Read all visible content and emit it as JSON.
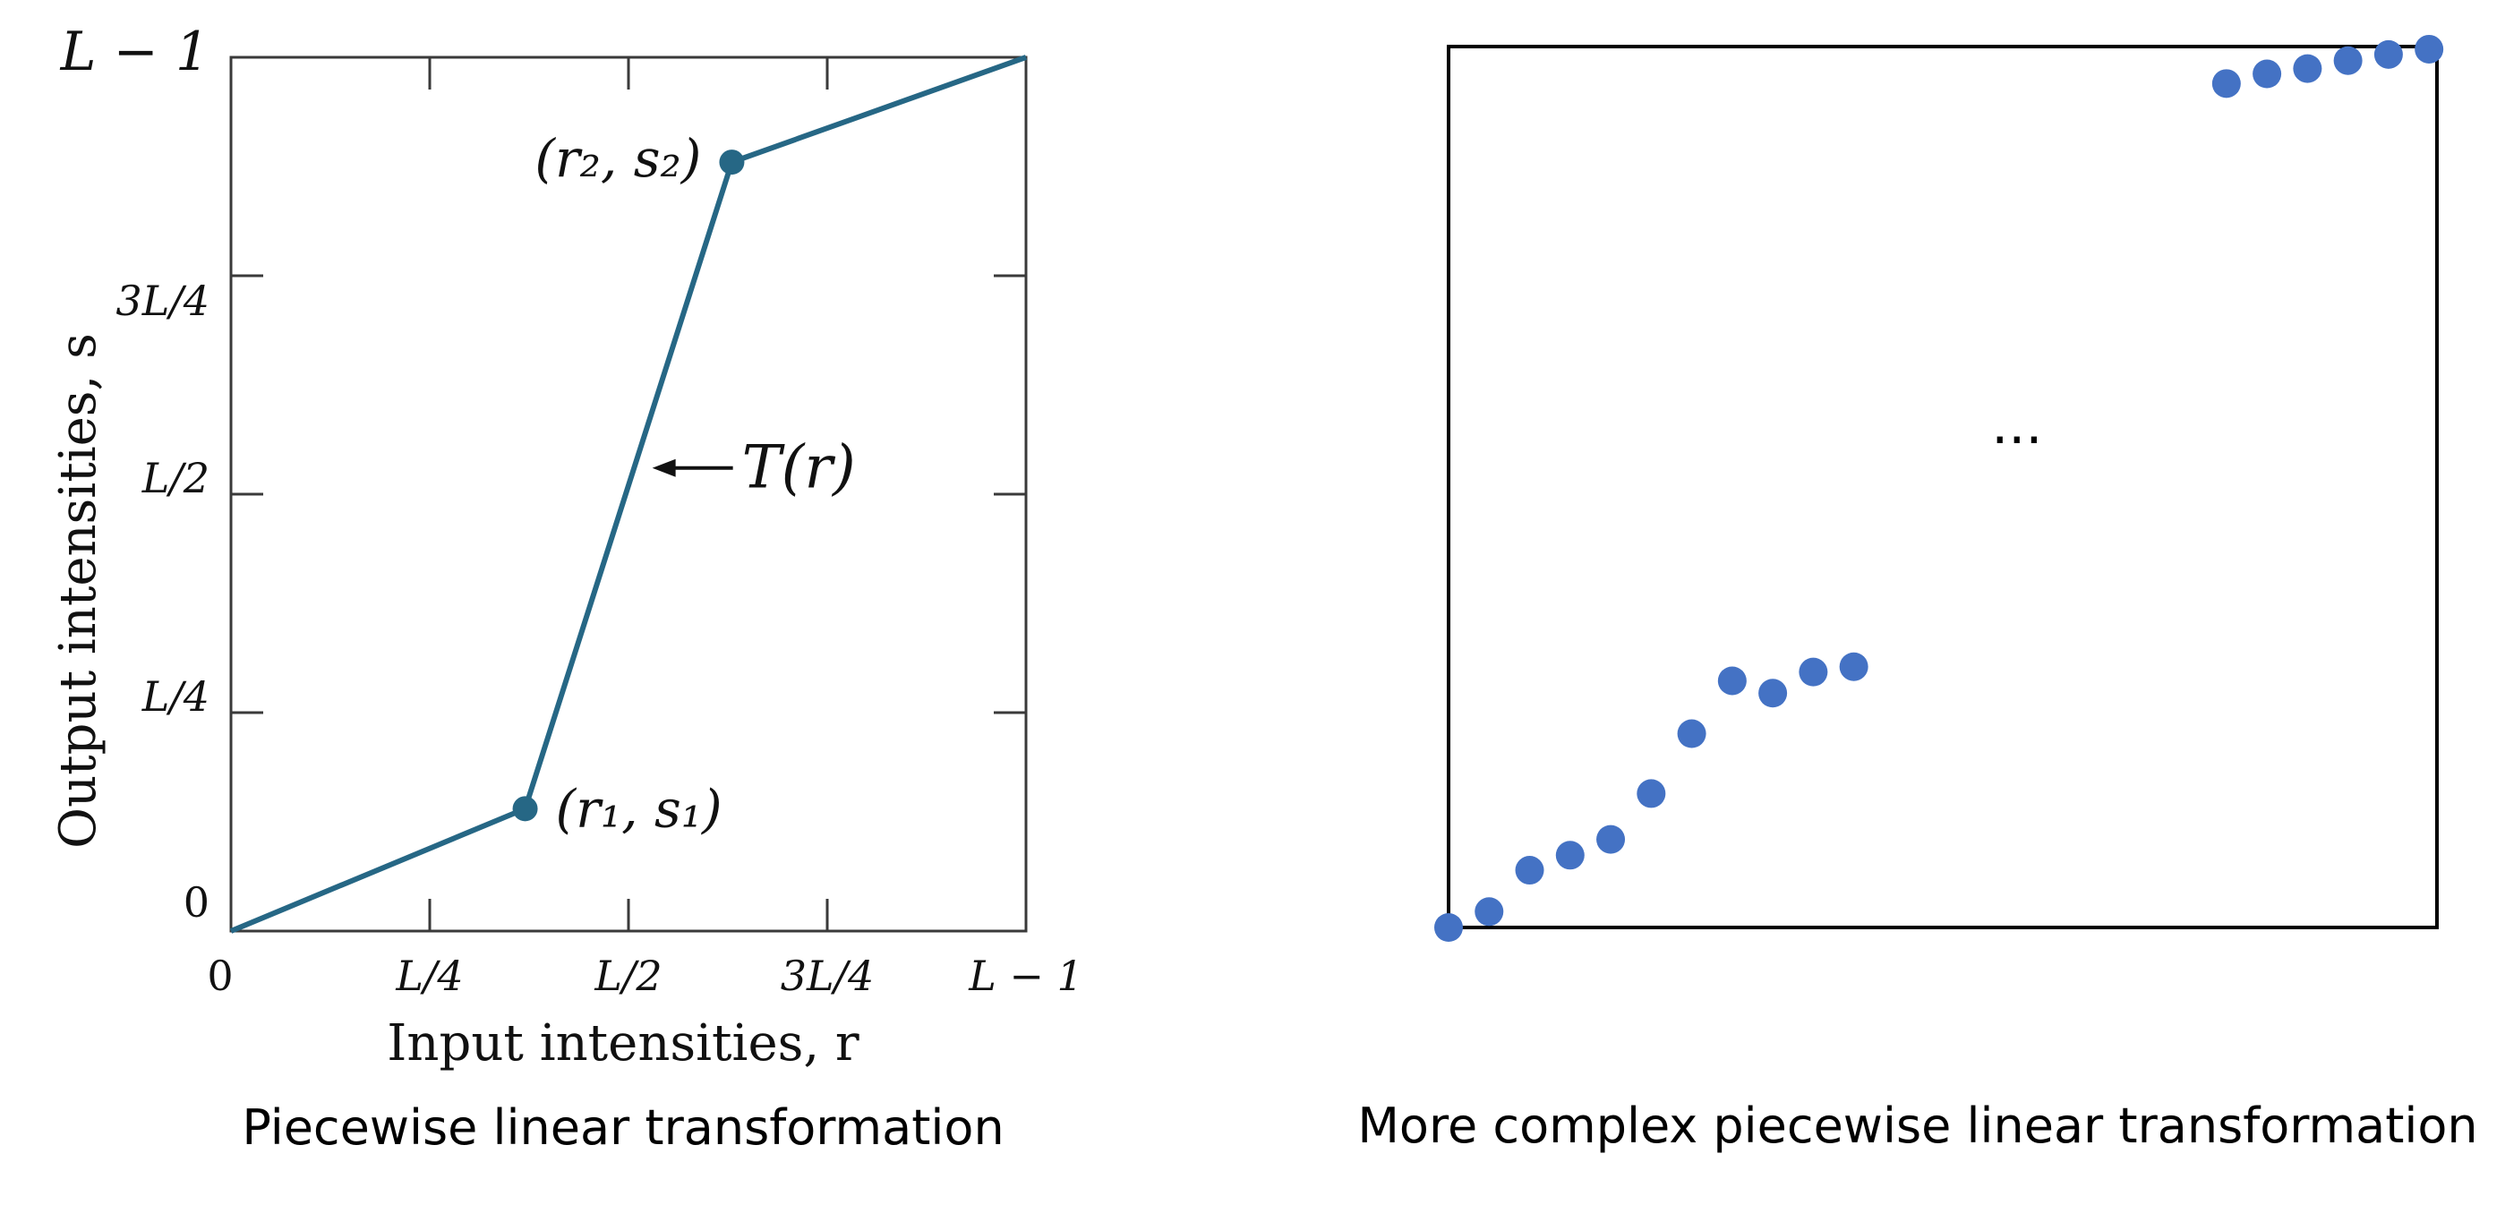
{
  "chart_data": [
    {
      "type": "line",
      "title": "Piecewise linear transformation",
      "xlabel": "Input intensities, r",
      "ylabel": "Output intensities, s",
      "xlim": [
        0,
        1
      ],
      "ylim": [
        0,
        1
      ],
      "x_ticks": [
        {
          "value": 0,
          "label": "0"
        },
        {
          "value": 0.25,
          "label": "L/4"
        },
        {
          "value": 0.5,
          "label": "L/2"
        },
        {
          "value": 0.75,
          "label": "3L/4"
        },
        {
          "value": 1,
          "label": "L − 1"
        }
      ],
      "y_ticks": [
        {
          "value": 0,
          "label": "0"
        },
        {
          "value": 0.25,
          "label": "L/4"
        },
        {
          "value": 0.5,
          "label": "L/2"
        },
        {
          "value": 0.75,
          "label": "3L/4"
        },
        {
          "value": 1,
          "label": "L − 1"
        }
      ],
      "series": [
        {
          "name": "T(r)",
          "x": [
            0,
            0.37,
            0.63,
            1
          ],
          "y": [
            0,
            0.14,
            0.88,
            1
          ]
        }
      ],
      "points": [
        {
          "x": 0.37,
          "y": 0.14,
          "label": "(r₁, s₁)"
        },
        {
          "x": 0.63,
          "y": 0.88,
          "label": "(r₂, s₂)"
        }
      ],
      "annotation": {
        "text": "T(r)",
        "arrow_to": [
          0.53,
          0.53
        ]
      },
      "color": "#266785"
    },
    {
      "type": "scatter",
      "title": "More complex piecewise linear transformation",
      "xlim": [
        0,
        1
      ],
      "ylim": [
        0,
        1
      ],
      "color": "#4472c4",
      "points": [
        {
          "x": 0.0,
          "y": 0.0
        },
        {
          "x": 0.041,
          "y": 0.018
        },
        {
          "x": 0.082,
          "y": 0.065
        },
        {
          "x": 0.123,
          "y": 0.082
        },
        {
          "x": 0.164,
          "y": 0.1
        },
        {
          "x": 0.205,
          "y": 0.152
        },
        {
          "x": 0.246,
          "y": 0.22
        },
        {
          "x": 0.287,
          "y": 0.28
        },
        {
          "x": 0.328,
          "y": 0.266
        },
        {
          "x": 0.369,
          "y": 0.29
        },
        {
          "x": 0.41,
          "y": 0.296
        },
        {
          "x": 0.787,
          "y": 0.958
        },
        {
          "x": 0.828,
          "y": 0.969
        },
        {
          "x": 0.869,
          "y": 0.975
        },
        {
          "x": 0.91,
          "y": 0.984
        },
        {
          "x": 0.951,
          "y": 0.991
        },
        {
          "x": 0.992,
          "y": 0.997
        }
      ],
      "annotation": {
        "text": "...",
        "x": 0.575,
        "y": 0.55
      }
    }
  ]
}
